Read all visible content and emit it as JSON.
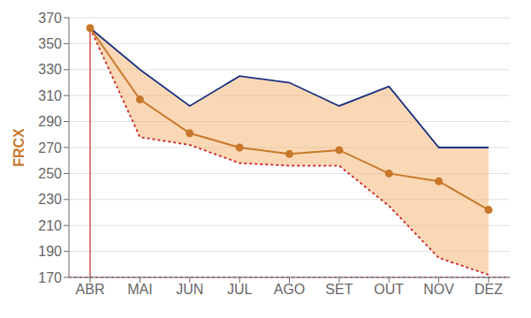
{
  "chart_data": {
    "type": "line",
    "categories": [
      "ABR",
      "MAI",
      "JUN",
      "JUL",
      "AGO",
      "SET",
      "OUT",
      "NOV",
      "DEZ"
    ],
    "series": [
      {
        "color": "#1a3080",
        "line_style": "solid",
        "marker": "none",
        "values": [
          362,
          330,
          302,
          325,
          320,
          302,
          317,
          270,
          270
        ]
      },
      {
        "color": "#cc2222",
        "line_style": "dotted",
        "marker": "none",
        "values": [
          362,
          278,
          272,
          258,
          256,
          256,
          225,
          185,
          172
        ]
      },
      {
        "color": "#c8782a",
        "line_style": "solid",
        "marker": "o",
        "values": [
          362,
          307,
          281,
          270,
          265,
          268,
          250,
          244,
          222
        ]
      }
    ],
    "band": {
      "color": "#f5b87a",
      "lower": 1,
      "upper": 0
    },
    "vline": {
      "x": "ABR",
      "ymin": 170,
      "ymax": 362,
      "color": "#cc2222"
    },
    "hline": {
      "y": 170,
      "color": "#cc2222",
      "line_style": "dotted"
    },
    "ylabel": "FRCX",
    "ylim": [
      170,
      370
    ],
    "yticks": [
      170,
      190,
      210,
      230,
      250,
      270,
      290,
      310,
      330,
      350,
      370
    ],
    "grid": true
  }
}
